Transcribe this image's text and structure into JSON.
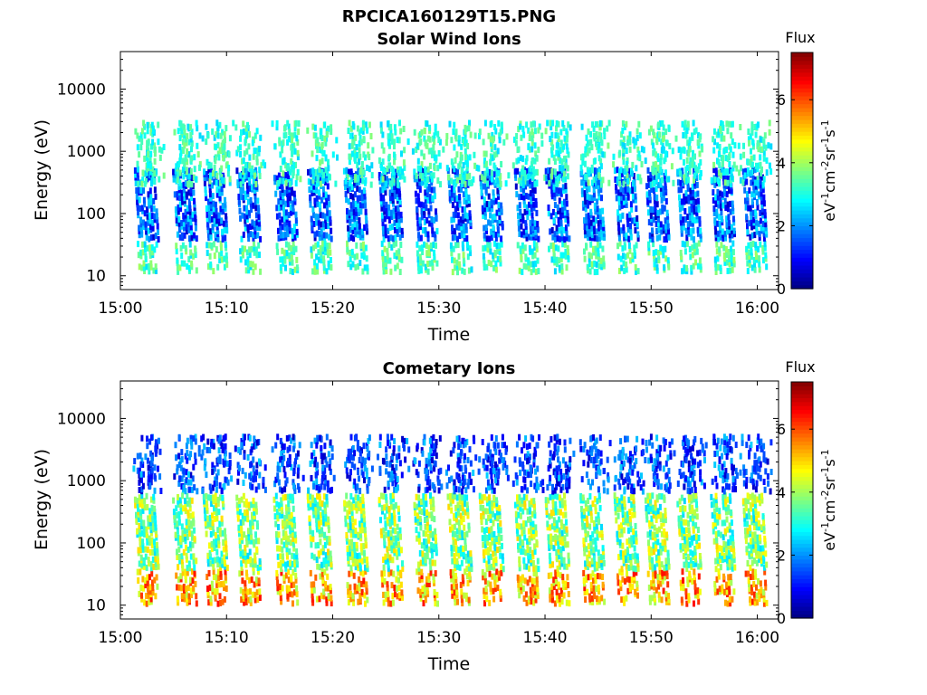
{
  "figure": {
    "title": "RPCICA160129T15.PNG"
  },
  "colormap": {
    "name": "jet",
    "stops": [
      "#00007f",
      "#0000ff",
      "#007fff",
      "#00ffff",
      "#7fff7f",
      "#ffff00",
      "#ff7f00",
      "#ff0000",
      "#7f0000"
    ]
  },
  "chart_data": [
    {
      "type": "heatmap",
      "title": "Solar Wind Ions",
      "xlabel": "Time",
      "ylabel": "Energy (eV)",
      "x_ticks": [
        "15:00",
        "15:10",
        "15:20",
        "15:30",
        "15:40",
        "15:50",
        "16:00"
      ],
      "x_range_minutes": [
        0,
        62
      ],
      "y_scale": "log",
      "y_ticks": [
        "10",
        "100",
        "1000",
        "10000"
      ],
      "y_range": [
        6,
        40000
      ],
      "colorbar": {
        "title": "Flux",
        "label": "eV-1cm-2sr-1s-1",
        "ticks": [
          "0",
          "2",
          "4",
          "6"
        ],
        "range": [
          0,
          7.5
        ]
      },
      "burst_times_minutes": [
        2.6,
        6.2,
        9.1,
        12.2,
        15.7,
        18.9,
        22.3,
        25.6,
        28.9,
        32.1,
        35.1,
        38.4,
        41.3,
        44.6,
        47.8,
        50.7,
        53.7,
        56.9,
        59.9
      ],
      "bursts": [
        {
          "band": "low",
          "energy_eV": [
            12,
            35
          ],
          "flux_range": [
            2.5,
            4.0
          ]
        },
        {
          "band": "mid",
          "energy_eV": [
            40,
            500
          ],
          "flux_range": [
            0.5,
            2.8
          ]
        },
        {
          "band": "high",
          "energy_eV": [
            300,
            3000
          ],
          "flux_range": [
            2.5,
            3.8
          ]
        }
      ]
    },
    {
      "type": "heatmap",
      "title": "Cometary Ions",
      "xlabel": "Time",
      "ylabel": "Energy (eV)",
      "x_ticks": [
        "15:00",
        "15:10",
        "15:20",
        "15:30",
        "15:40",
        "15:50",
        "16:00"
      ],
      "x_range_minutes": [
        0,
        62
      ],
      "y_scale": "log",
      "y_ticks": [
        "10",
        "100",
        "1000",
        "10000"
      ],
      "y_range": [
        6,
        40000
      ],
      "colorbar": {
        "title": "Flux",
        "label": "eV-1cm-2sr-1s-1",
        "ticks": [
          "0",
          "2",
          "4",
          "6"
        ],
        "range": [
          0,
          7.5
        ]
      },
      "burst_times_minutes": [
        2.6,
        6.2,
        9.1,
        12.2,
        15.7,
        18.9,
        22.3,
        25.6,
        28.9,
        32.1,
        35.1,
        38.4,
        41.3,
        44.6,
        47.8,
        50.7,
        53.7,
        56.9,
        59.9
      ],
      "bursts": [
        {
          "band": "low",
          "energy_eV": [
            11,
            35
          ],
          "flux_range": [
            4.0,
            6.5
          ]
        },
        {
          "band": "mid",
          "energy_eV": [
            40,
            600
          ],
          "flux_range": [
            2.5,
            5.0
          ]
        },
        {
          "band": "high",
          "energy_eV": [
            700,
            5000
          ],
          "flux_range": [
            0.5,
            2.5
          ]
        }
      ]
    }
  ]
}
